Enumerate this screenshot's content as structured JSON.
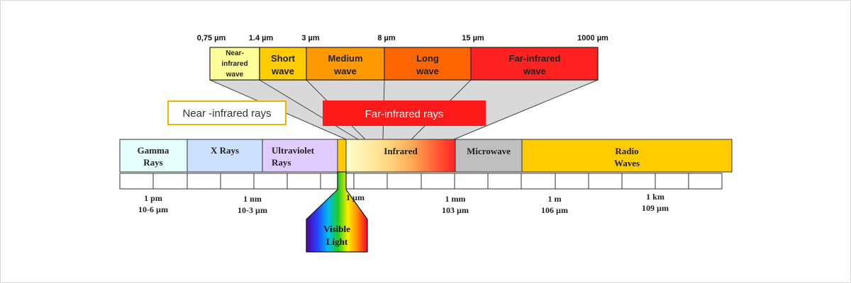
{
  "top_scale": {
    "ticks": [
      "0,75 µm",
      "1.4 µm",
      "3 µm",
      "8 µm",
      "15 µm",
      "1000 µm"
    ],
    "bands": [
      {
        "lines": [
          "Near-",
          "infrared",
          "wave"
        ],
        "color": "#ffff99"
      },
      {
        "lines": [
          "Short",
          "wave"
        ],
        "color": "#ffcc00"
      },
      {
        "lines": [
          "Medium",
          "wave"
        ],
        "color": "#ff9900"
      },
      {
        "lines": [
          "Long",
          "wave"
        ],
        "color": "#ff6600"
      },
      {
        "lines": [
          "Far-infrared",
          "wave"
        ],
        "color": "#ff2020"
      }
    ]
  },
  "callouts": {
    "near": "Near -infrared rays",
    "far": "Far-infrared rays",
    "near_border_color": "#e6b800",
    "far_fill_color": "#ff1a1a"
  },
  "spectrum": {
    "bands": [
      {
        "lines": [
          "Gamma",
          "Rays"
        ],
        "color": "#e6ffff"
      },
      {
        "lines": [
          "X Rays"
        ],
        "color": "#cce0ff"
      },
      {
        "lines": [
          "Ultraviolet",
          "Rays"
        ],
        "color": "#e0ccff"
      },
      {
        "lines": [
          "Infrared"
        ],
        "color": "#ffcc66"
      },
      {
        "lines": [
          "Microwave"
        ],
        "color": "#bfbfbf"
      },
      {
        "lines": [
          "Radio",
          "Waves"
        ],
        "color": "#ffcc00"
      }
    ],
    "scale_labels": [
      {
        "lines": [
          "1 pm",
          "10-6 µm"
        ]
      },
      {
        "lines": [
          "1 nm",
          "10-3 µm"
        ]
      },
      {
        "lines": [
          "1 µm"
        ]
      },
      {
        "lines": [
          "1 mm",
          "103 µm"
        ]
      },
      {
        "lines": [
          "1 m",
          "106 µm"
        ]
      },
      {
        "lines": [
          "1 km",
          "109 µm"
        ]
      }
    ]
  },
  "visible_light": {
    "lines": [
      "Visible",
      "Light"
    ]
  }
}
